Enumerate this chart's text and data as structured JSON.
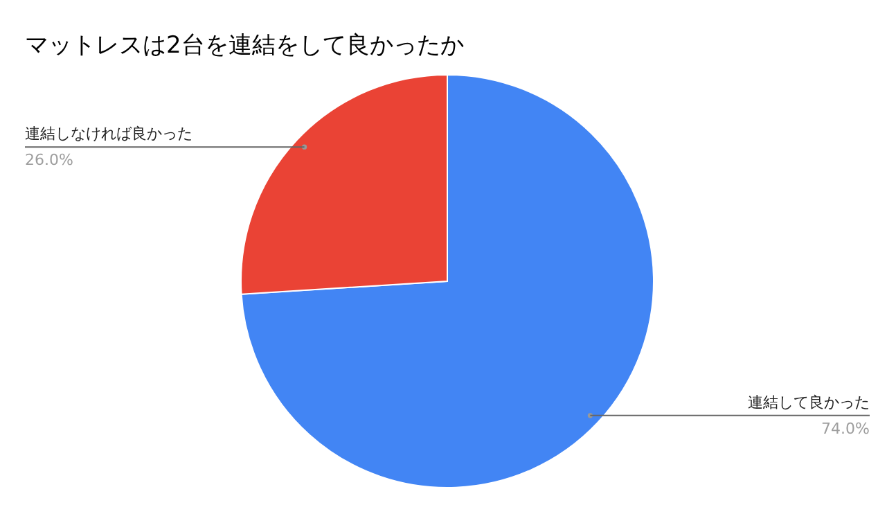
{
  "chart_data": {
    "type": "pie",
    "title": "マットレスは2台を連結をして良かったか",
    "categories": [
      "連結して良かった",
      "連結しなければ良かった"
    ],
    "values": [
      74,
      26
    ],
    "colors": [
      "#4285f4",
      "#ea4335"
    ],
    "value_labels": [
      "74.0%",
      "26.0%"
    ]
  }
}
